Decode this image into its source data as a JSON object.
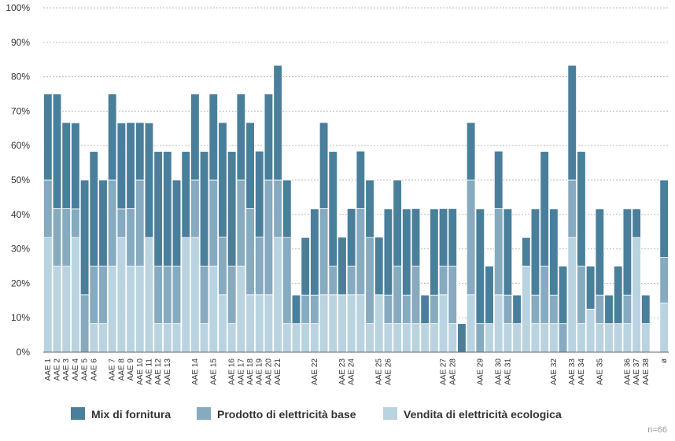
{
  "chart_data": {
    "type": "stacked_bar",
    "categories": [
      "AAE 1",
      "AAE 2",
      "AAE 3",
      "AAE 4",
      "AAE 5",
      "AAE 6",
      null,
      "AAE 7",
      "AAE 8",
      "AAE 9",
      "AAE 10",
      "AAE 11",
      "AAE 12",
      "AAE 13",
      null,
      null,
      "AAE 14",
      null,
      "AAE 15",
      null,
      "AAE 16",
      "AAE 17",
      "AAE 18",
      "AAE 19",
      "AAE 20",
      "AAE 21",
      null,
      null,
      null,
      "AAE 22",
      null,
      null,
      "AAE 23",
      "AAE 24",
      null,
      null,
      "AAE 25",
      "AAE 26",
      null,
      null,
      null,
      null,
      null,
      "AAE 27",
      "AAE 28",
      null,
      null,
      "AAE 29",
      null,
      "AAE 30",
      "AAE 31",
      null,
      null,
      null,
      null,
      "AAE 32",
      null,
      "AAE 33",
      "AAE 34",
      null,
      "AAE 35",
      null,
      null,
      "AAE 36",
      "AAE 37",
      "AAE 38",
      null,
      "ø"
    ],
    "series": [
      {
        "name": "Vendita di elettricità ecologica",
        "color": "#b9d3e0",
        "values": [
          33.3,
          25,
          25,
          33.3,
          0,
          8.3,
          8.3,
          25,
          33.3,
          25,
          25,
          33.3,
          8.3,
          8.3,
          8.3,
          33.3,
          33.3,
          8.3,
          25,
          16.7,
          8.3,
          25,
          16.7,
          16.7,
          16.7,
          33.3,
          8.3,
          8.3,
          8.3,
          8.3,
          16.7,
          16.7,
          16.7,
          16.7,
          16.7,
          8.3,
          16.7,
          8.3,
          8.3,
          8.3,
          8.3,
          8.3,
          8.3,
          16.7,
          8.3,
          0,
          16.7,
          0,
          8.3,
          16.7,
          8.3,
          8.3,
          25,
          8.3,
          8.3,
          8.3,
          0,
          33.3,
          8.3,
          12.5,
          8.3,
          8.3,
          8.3,
          8.3,
          33.3,
          8.3,
          0,
          14.3
        ]
      },
      {
        "name": "Prodotto di elettricità base",
        "color": "#86aabf",
        "values": [
          16.7,
          16.7,
          16.7,
          8.3,
          16.7,
          16.7,
          16.7,
          25,
          8.3,
          16.7,
          25,
          0,
          16.7,
          16.7,
          16.7,
          0,
          16.7,
          16.7,
          25,
          16.7,
          16.7,
          25,
          25,
          16.7,
          33.3,
          16.7,
          25,
          0,
          8.3,
          8.3,
          25,
          8.3,
          0,
          8.3,
          25,
          25,
          0,
          8.3,
          16.7,
          8.3,
          16.7,
          0,
          8.3,
          8.3,
          16.7,
          0,
          33.3,
          8.3,
          0,
          25,
          8.3,
          0,
          0,
          8.3,
          16.7,
          8.3,
          8.3,
          16.7,
          16.7,
          0,
          8.3,
          0,
          0,
          8.3,
          0,
          0,
          0,
          13.2
        ]
      },
      {
        "name": "Mix di fornitura",
        "color": "#4a7f9b",
        "values": [
          25,
          33.3,
          25,
          25,
          33.3,
          33.3,
          25,
          25,
          25,
          25,
          16.7,
          33.3,
          33.3,
          33.3,
          25,
          25,
          25,
          33.3,
          25,
          33.3,
          33.3,
          25,
          25,
          25,
          25,
          33.3,
          16.7,
          8.3,
          16.7,
          25,
          25,
          33.3,
          16.7,
          16.7,
          16.7,
          16.7,
          16.7,
          25,
          25,
          25,
          16.7,
          8.3,
          25,
          16.7,
          16.7,
          8.3,
          16.7,
          33.3,
          16.7,
          16.7,
          25,
          8.3,
          8.3,
          25,
          33.3,
          25,
          16.7,
          33.3,
          33.3,
          12.5,
          25,
          8.3,
          16.7,
          25,
          8.3,
          8.3,
          0,
          22.5
        ]
      }
    ],
    "ylim": [
      0,
      100
    ],
    "yticks": [
      {
        "value": 0,
        "label": "0%"
      },
      {
        "value": 10,
        "label": "10%"
      },
      {
        "value": 20,
        "label": "20%"
      },
      {
        "value": 30,
        "label": "30%"
      },
      {
        "value": 40,
        "label": "40%"
      },
      {
        "value": 50,
        "label": "50%"
      },
      {
        "value": 60,
        "label": "60%"
      },
      {
        "value": 70,
        "label": "70%"
      },
      {
        "value": 80,
        "label": "80%"
      },
      {
        "value": 90,
        "label": "90%"
      },
      {
        "value": 100,
        "label": "100%"
      }
    ],
    "grid": true,
    "note": "n=66"
  }
}
